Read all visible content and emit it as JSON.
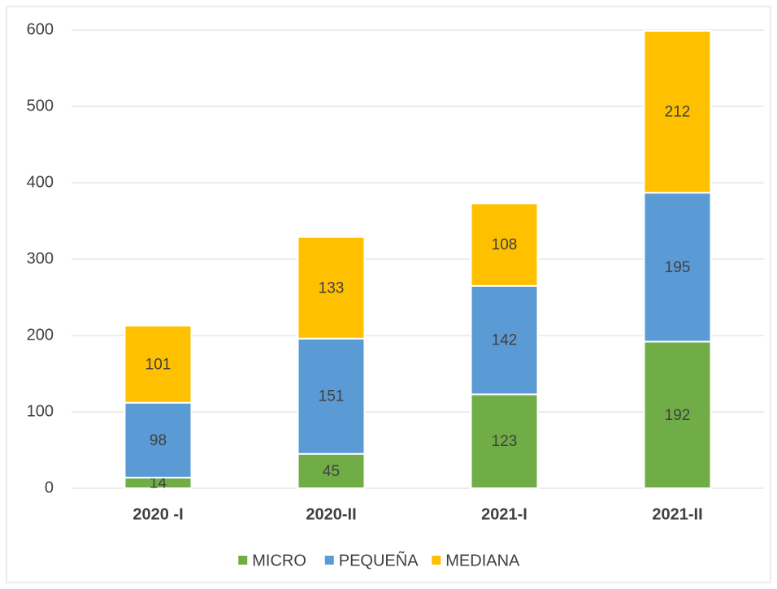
{
  "chart_data": {
    "type": "stacked_bar",
    "categories": [
      "2020 -I",
      "2020-II",
      "2021-I",
      "2021-II"
    ],
    "series": [
      {
        "name": "MICRO",
        "color": "#70ad47",
        "values": [
          14,
          45,
          123,
          192
        ]
      },
      {
        "name": "PEQUEÑA",
        "color": "#5b9bd5",
        "values": [
          98,
          151,
          142,
          195
        ]
      },
      {
        "name": "MEDIANA",
        "color": "#ffc000",
        "values": [
          101,
          133,
          108,
          212
        ]
      }
    ],
    "ylim": [
      0,
      600
    ],
    "yticks": [
      0,
      100,
      200,
      300,
      400,
      500,
      600
    ],
    "grid": true,
    "legend": "bottom"
  }
}
